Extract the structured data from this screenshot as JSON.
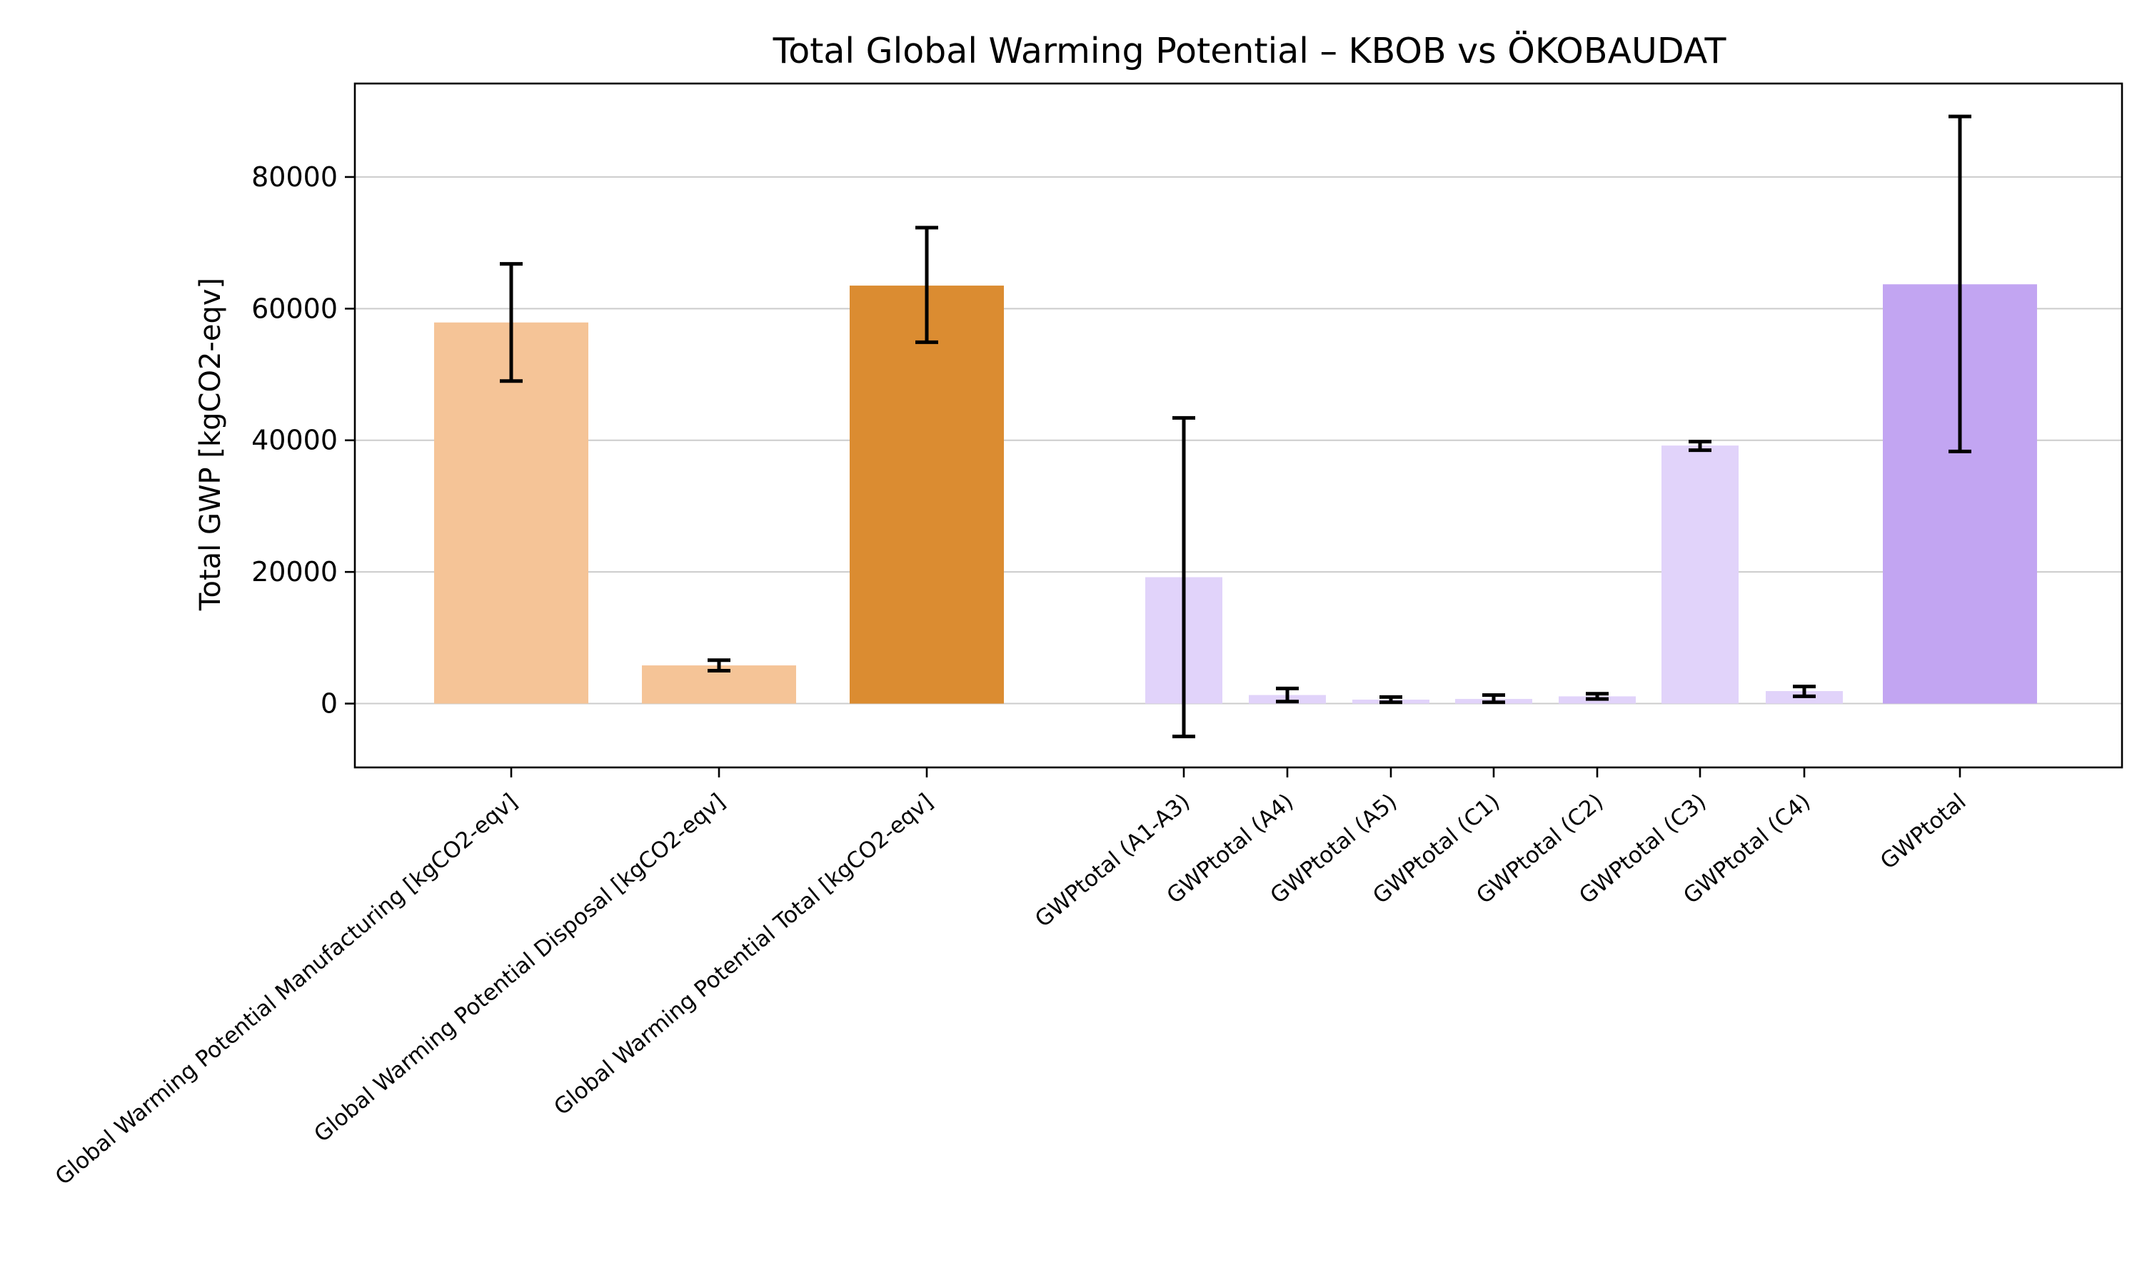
{
  "chart_data": {
    "type": "bar",
    "title": "Total Global Warming Potential – KBOB vs ÖKOBAUDAT",
    "ylabel": "Total GWP [kgCO2-eqv]",
    "xlabel": "",
    "ylim": [
      -9700,
      94200
    ],
    "yticks": [
      0,
      20000,
      40000,
      60000,
      80000
    ],
    "ytick_labels": [
      "0",
      "20000",
      "40000",
      "60000",
      "80000"
    ],
    "grid": "horizontal",
    "groups": [
      {
        "name": "KBOB",
        "bars": [
          {
            "label": "Global Warming Potential Manufacturing [kgCO2-eqv]",
            "value": 57900,
            "err_low": 49000,
            "err_high": 66800,
            "color": "#f5c497"
          },
          {
            "label": "Global Warming Potential Disposal [kgCO2-eqv]",
            "value": 5800,
            "err_low": 5000,
            "err_high": 6600,
            "color": "#f5c497"
          },
          {
            "label": "Global Warming Potential Total [kgCO2-eqv]",
            "value": 63500,
            "err_low": 54900,
            "err_high": 72300,
            "color": "#db8c31"
          }
        ]
      },
      {
        "name": "ÖKOBAUDAT",
        "bars": [
          {
            "label": "GWPtotal (A1-A3)",
            "value": 19200,
            "err_low": -5000,
            "err_high": 43400,
            "color": "#e1d3fa",
            "width": "narrow"
          },
          {
            "label": "GWPtotal (A4)",
            "value": 1300,
            "err_low": 300,
            "err_high": 2300,
            "color": "#e1d3fa",
            "width": "narrow"
          },
          {
            "label": "GWPtotal (A5)",
            "value": 600,
            "err_low": 200,
            "err_high": 1000,
            "color": "#e1d3fa",
            "width": "narrow"
          },
          {
            "label": "GWPtotal (C1)",
            "value": 700,
            "err_low": 200,
            "err_high": 1300,
            "color": "#e1d3fa",
            "width": "narrow"
          },
          {
            "label": "GWPtotal (C2)",
            "value": 1100,
            "err_low": 700,
            "err_high": 1500,
            "color": "#e1d3fa",
            "width": "narrow"
          },
          {
            "label": "GWPtotal (C3)",
            "value": 39200,
            "err_low": 38500,
            "err_high": 39800,
            "color": "#e1d3fa",
            "width": "narrow"
          },
          {
            "label": "GWPtotal (C4)",
            "value": 1900,
            "err_low": 1100,
            "err_high": 2600,
            "color": "#e1d3fa",
            "width": "narrow"
          },
          {
            "label": "GWPtotal",
            "value": 63700,
            "err_low": 38300,
            "err_high": 89200,
            "color": "#c2a5f2"
          }
        ]
      }
    ]
  }
}
